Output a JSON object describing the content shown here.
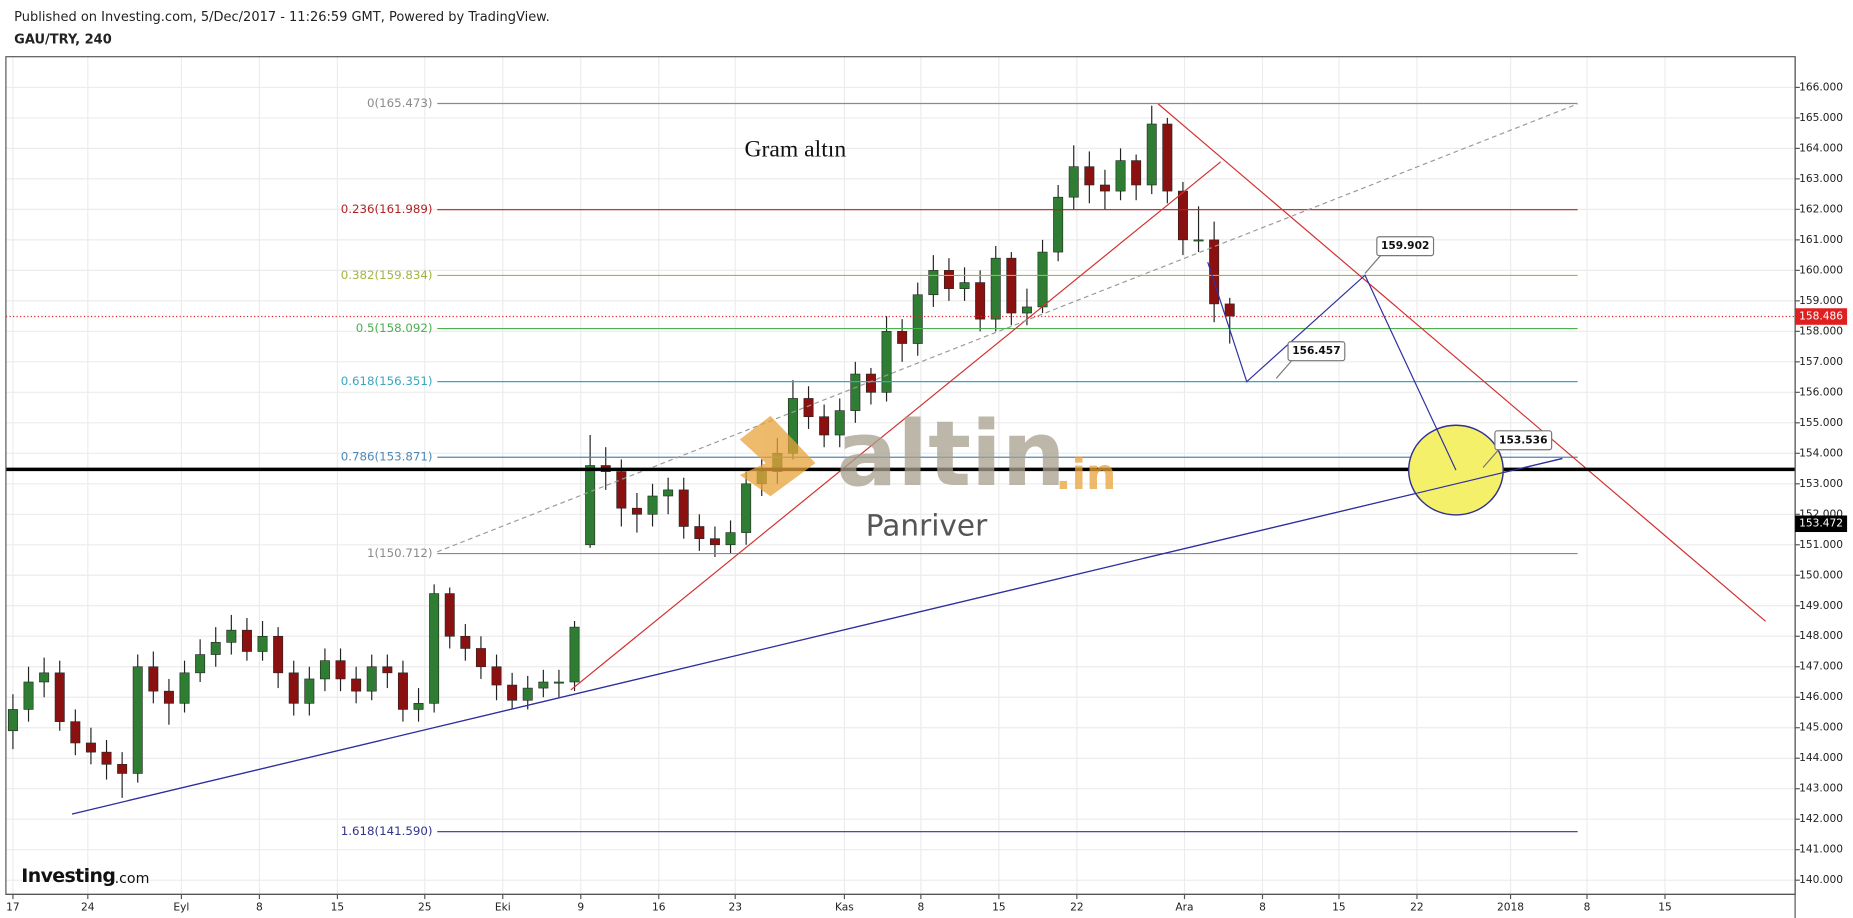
{
  "chart_data": {
    "type": "candlestick",
    "header": "Published on Investing.com, 5/Dec/2017 - 11:26:59 GMT, Powered by TradingView.",
    "title": "GAU/TRY, 240",
    "annotation": "Gram altın",
    "watermark": "altin",
    "watermark_suffix": ".in",
    "author": "Panriver",
    "logo": "Investing",
    "logo_suffix": ".com",
    "up_color": "#2e7d32",
    "down_color": "#8b1111",
    "grid": true,
    "xlim": [
      -0.45,
      114.24
    ],
    "ylim": [
      139.535,
      167.007
    ],
    "xticks": [
      {
        "value": 0,
        "label": "17"
      },
      {
        "value": 4.8,
        "label": "24"
      },
      {
        "value": 10.8,
        "label": "Eyl"
      },
      {
        "value": 15.8,
        "label": "8"
      },
      {
        "value": 20.8,
        "label": "15"
      },
      {
        "value": 26.4,
        "label": "25"
      },
      {
        "value": 31.4,
        "label": "Eki"
      },
      {
        "value": 36.4,
        "label": "9"
      },
      {
        "value": 41.4,
        "label": "16"
      },
      {
        "value": 46.3,
        "label": "23"
      },
      {
        "value": 53.3,
        "label": "Kas"
      },
      {
        "value": 58.2,
        "label": "8"
      },
      {
        "value": 63.2,
        "label": "15"
      },
      {
        "value": 68.2,
        "label": "22"
      },
      {
        "value": 75.1,
        "label": "Ara"
      },
      {
        "value": 80.1,
        "label": "8"
      },
      {
        "value": 85.0,
        "label": "15"
      },
      {
        "value": 90.0,
        "label": "22"
      },
      {
        "value": 96.0,
        "label": "2018"
      },
      {
        "value": 100.9,
        "label": "8"
      },
      {
        "value": 105.9,
        "label": "15"
      }
    ],
    "yticks": [
      {
        "value": 140,
        "label": "140.000"
      },
      {
        "value": 141,
        "label": "141.000"
      },
      {
        "value": 142,
        "label": "142.000"
      },
      {
        "value": 143,
        "label": "143.000"
      },
      {
        "value": 144,
        "label": "144.000"
      },
      {
        "value": 145,
        "label": "145.000"
      },
      {
        "value": 146,
        "label": "146.000"
      },
      {
        "value": 147,
        "label": "147.000"
      },
      {
        "value": 148,
        "label": "148.000"
      },
      {
        "value": 149,
        "label": "149.000"
      },
      {
        "value": 150,
        "label": "150.000"
      },
      {
        "value": 151,
        "label": "151.000"
      },
      {
        "value": 152,
        "label": "152.000"
      },
      {
        "value": 153,
        "label": "153.000"
      },
      {
        "value": 154,
        "label": "154.000"
      },
      {
        "value": 155,
        "label": "155.000"
      },
      {
        "value": 156,
        "label": "156.000"
      },
      {
        "value": 157,
        "label": "157.000"
      },
      {
        "value": 158,
        "label": "158.000"
      },
      {
        "value": 159,
        "label": "159.000"
      },
      {
        "value": 160,
        "label": "160.000"
      },
      {
        "value": 161,
        "label": "161.000"
      },
      {
        "value": 162,
        "label": "162.000"
      },
      {
        "value": 163,
        "label": "163.000"
      },
      {
        "value": 164,
        "label": "164.000"
      },
      {
        "value": 165,
        "label": "165.000"
      },
      {
        "value": 166,
        "label": "166.000"
      }
    ],
    "x": [
      0,
      1,
      2,
      3,
      4,
      5,
      6,
      7,
      8,
      9,
      10,
      11,
      12,
      13,
      14,
      15,
      16,
      17,
      18,
      19,
      20,
      21,
      22,
      23,
      24,
      25,
      26,
      27,
      28,
      29,
      30,
      31,
      32,
      33,
      34,
      35,
      36,
      37,
      38,
      39,
      40,
      41,
      42,
      43,
      44,
      45,
      46,
      47,
      48,
      49,
      50,
      51,
      52,
      53,
      54,
      55,
      56,
      57,
      58,
      59,
      60,
      61,
      62,
      63,
      64,
      65,
      66,
      67,
      68,
      69,
      70,
      71,
      72,
      73,
      74,
      75,
      76,
      77,
      78
    ],
    "open": [
      144.9,
      145.6,
      146.5,
      146.8,
      145.2,
      144.5,
      144.2,
      143.8,
      143.5,
      147.0,
      146.2,
      145.8,
      146.8,
      147.4,
      147.8,
      148.2,
      147.5,
      148.0,
      146.8,
      145.8,
      146.6,
      147.2,
      146.6,
      146.2,
      147.0,
      146.8,
      145.6,
      145.8,
      149.4,
      148.0,
      147.6,
      147.0,
      146.4,
      145.9,
      146.3,
      146.5,
      146.5,
      151.0,
      153.6,
      153.4,
      152.2,
      152.0,
      152.6,
      152.8,
      151.6,
      151.2,
      151.0,
      151.4,
      153.0,
      153.4,
      154.0,
      155.8,
      155.2,
      154.6,
      155.4,
      156.6,
      156.0,
      158.0,
      157.6,
      159.2,
      160.0,
      159.4,
      159.6,
      158.4,
      160.4,
      158.6,
      158.8,
      160.6,
      162.4,
      163.4,
      162.8,
      162.6,
      163.6,
      162.8,
      164.8,
      162.6,
      161.0,
      161.0,
      158.9
    ],
    "high": [
      146.1,
      147.0,
      147.3,
      147.2,
      145.6,
      145.0,
      144.6,
      144.2,
      147.4,
      147.5,
      146.6,
      147.2,
      147.9,
      148.3,
      148.7,
      148.6,
      148.5,
      148.3,
      147.2,
      147.0,
      147.6,
      147.6,
      147.0,
      147.4,
      147.4,
      147.2,
      146.3,
      149.7,
      149.6,
      148.4,
      148.0,
      147.4,
      146.8,
      146.7,
      146.9,
      146.9,
      148.5,
      154.6,
      154.2,
      153.8,
      152.7,
      153.0,
      153.2,
      153.2,
      152.0,
      151.6,
      151.8,
      153.4,
      153.8,
      154.5,
      156.4,
      156.2,
      155.6,
      155.8,
      157.0,
      156.8,
      158.5,
      158.4,
      159.6,
      160.5,
      160.4,
      160.1,
      160.0,
      160.8,
      160.6,
      159.4,
      161.0,
      162.8,
      164.1,
      163.9,
      163.3,
      164.0,
      163.8,
      165.4,
      165.0,
      162.9,
      162.1,
      161.6,
      159.1
    ],
    "low": [
      144.3,
      145.2,
      146.0,
      144.9,
      144.1,
      143.8,
      143.3,
      142.7,
      143.2,
      145.8,
      145.1,
      145.5,
      146.5,
      147.0,
      147.4,
      147.2,
      147.2,
      146.3,
      145.4,
      145.4,
      146.2,
      146.2,
      145.8,
      145.9,
      146.3,
      145.2,
      145.2,
      145.5,
      147.6,
      147.2,
      146.6,
      145.9,
      145.6,
      145.6,
      146.0,
      146.0,
      146.2,
      150.9,
      152.8,
      151.6,
      151.4,
      151.6,
      152.0,
      151.2,
      150.8,
      150.6,
      150.7,
      151.0,
      152.6,
      153.0,
      153.8,
      154.8,
      154.2,
      154.2,
      155.0,
      155.6,
      155.7,
      157.0,
      157.2,
      158.8,
      159.0,
      159.0,
      158.0,
      158.0,
      158.2,
      158.2,
      158.6,
      160.3,
      162.0,
      162.2,
      162.0,
      162.3,
      162.3,
      162.5,
      162.2,
      160.5,
      160.6,
      158.3,
      157.6
    ],
    "close": [
      145.6,
      146.5,
      146.8,
      145.2,
      144.5,
      144.2,
      143.8,
      143.5,
      147.0,
      146.2,
      145.8,
      146.8,
      147.4,
      147.8,
      148.2,
      147.5,
      148.0,
      146.8,
      145.8,
      146.6,
      147.2,
      146.6,
      146.2,
      147.0,
      146.8,
      145.6,
      145.8,
      149.4,
      148.0,
      147.6,
      147.0,
      146.4,
      145.9,
      146.3,
      146.5,
      146.5,
      148.3,
      153.6,
      153.4,
      152.2,
      152.0,
      152.6,
      152.8,
      151.6,
      151.2,
      151.0,
      151.4,
      153.0,
      153.4,
      154.0,
      155.8,
      155.2,
      154.6,
      155.4,
      156.6,
      156.0,
      158.0,
      157.6,
      159.2,
      160.0,
      159.4,
      159.6,
      158.4,
      160.4,
      158.6,
      158.8,
      160.6,
      162.4,
      163.4,
      162.8,
      162.6,
      163.6,
      162.8,
      164.8,
      162.6,
      161.0,
      161.0,
      158.9,
      158.5
    ],
    "fib_x": [
      27.2,
      100.3
    ],
    "fib_levels": [
      {
        "label": "0(165.473)",
        "value": 165.473,
        "color": "#8a8a8a"
      },
      {
        "label": "0.236(161.989)",
        "value": 161.989,
        "color": "#b22222"
      },
      {
        "label": "0.382(159.834)",
        "value": 159.834,
        "color": "#a5b444"
      },
      {
        "label": "0.5(158.092)",
        "value": 158.092,
        "color": "#4caf50"
      },
      {
        "label": "0.618(156.351)",
        "value": 156.351,
        "color": "#3aa5c0"
      },
      {
        "label": "0.786(153.871)",
        "value": 153.871,
        "color": "#4f88b5"
      },
      {
        "label": "1(150.712)",
        "value": 150.712,
        "color": "#8a8a8a"
      },
      {
        "label": "1.618(141.590)",
        "value": 141.59,
        "color": "#33338a"
      }
    ],
    "drawings": [
      {
        "x1": 35.76,
        "y1": 146.24,
        "x2": 77.42,
        "y2": 163.56,
        "color": "#d32f2f"
      },
      {
        "x1": 73.41,
        "y1": 165.46,
        "x2": 112.35,
        "y2": 148.49,
        "color": "#d32f2f"
      },
      {
        "x1": 3.79,
        "y1": 142.17,
        "x2": 99.32,
        "y2": 153.83,
        "color": "#3030a0"
      },
      {
        "x1": 27.2,
        "y1": 150.77,
        "x2": 100.3,
        "y2": 165.46,
        "color": "#9a9a9a",
        "dashed": true
      }
    ],
    "projection": {
      "color": "#3030a0",
      "x": [
        76.59,
        79.09,
        86.67,
        92.5
      ],
      "y": [
        160.27,
        156.35,
        159.84,
        153.45
      ]
    },
    "target_zone": {
      "x": 92.5,
      "y": 153.45,
      "rx": 3.03,
      "ry": 1.47,
      "color": "#f5f06a"
    },
    "callouts": [
      {
        "label": "159.902",
        "value": 159.902,
        "x": 86.67
      },
      {
        "label": "156.457",
        "value": 156.457,
        "x": 80.98
      },
      {
        "label": "153.536",
        "value": 153.536,
        "x": 94.24
      }
    ],
    "last_price": {
      "label": "158.486",
      "value": 158.486,
      "color": "#e02020"
    },
    "level_line": {
      "label": "153.472",
      "value": 153.472,
      "color": "#000000"
    }
  }
}
